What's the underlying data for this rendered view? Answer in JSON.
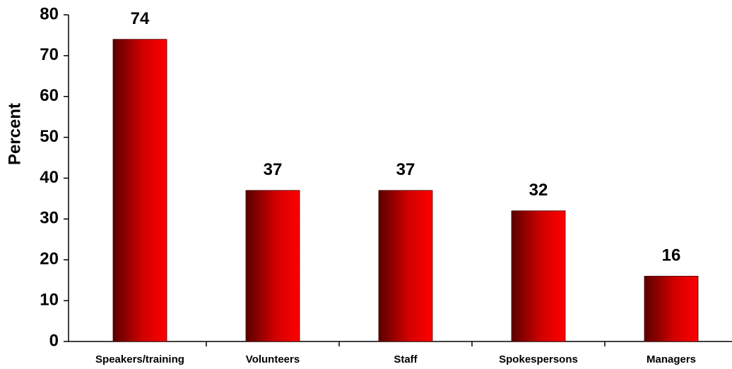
{
  "chart_data": {
    "type": "bar",
    "y_label": "Percent",
    "categories": [
      "Speakers/training",
      "Volunteers",
      "Staff",
      "Spokespersons",
      "Managers"
    ],
    "values": [
      74,
      37,
      37,
      32,
      16
    ],
    "color": "#ff0000",
    "ylim": [
      0,
      80
    ],
    "yticks": [
      0,
      10,
      20,
      30,
      40,
      50,
      60,
      70,
      80
    ],
    "grid": false
  }
}
